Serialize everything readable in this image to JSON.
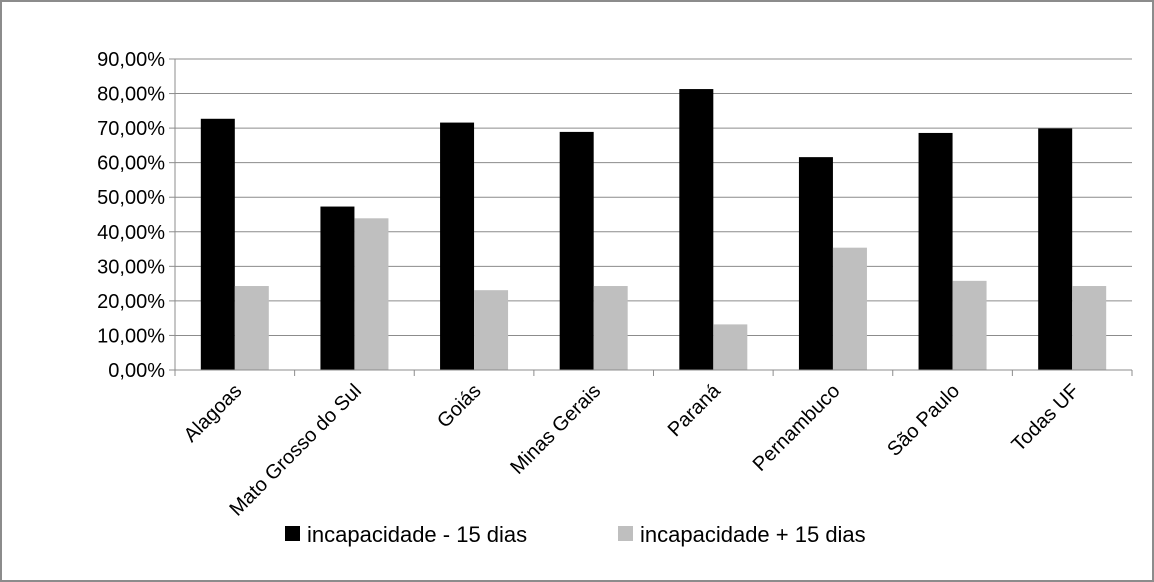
{
  "chart_data": {
    "type": "bar",
    "title": "",
    "xlabel": "",
    "ylabel": "",
    "categories": [
      "Alagoas",
      "Mato Grosso do Sul",
      "Goiás",
      "Minas Gerais",
      "Paraná",
      "Pernambuco",
      "São Paulo",
      "Todas UF"
    ],
    "series": [
      {
        "name": "incapacidade - 15 dias",
        "color": "#000000",
        "values": [
          72.7,
          47.3,
          71.6,
          68.9,
          81.3,
          61.6,
          68.6,
          69.9
        ]
      },
      {
        "name": "incapacidade + 15 dias",
        "color": "#bfbfbf",
        "values": [
          24.3,
          43.9,
          23.1,
          24.3,
          13.2,
          35.4,
          25.8,
          24.3
        ]
      }
    ],
    "ylim": [
      0,
      90
    ],
    "yticks": [
      0,
      10,
      20,
      30,
      40,
      50,
      60,
      70,
      80,
      90
    ],
    "ytick_labels": [
      "0,00%",
      "10,00%",
      "20,00%",
      "30,00%",
      "40,00%",
      "50,00%",
      "60,00%",
      "70,00%",
      "80,00%",
      "90,00%"
    ],
    "grid": true,
    "legend_position": "bottom"
  }
}
